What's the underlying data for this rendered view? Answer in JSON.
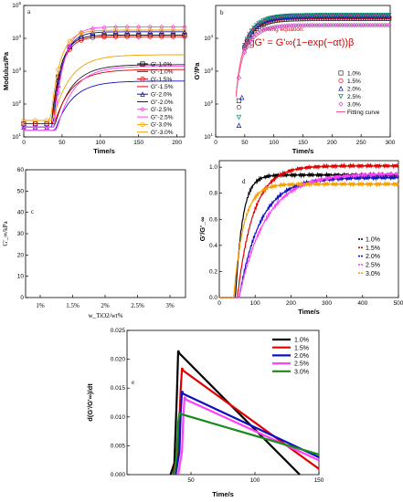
{
  "chart_data": [
    {
      "panel": "a",
      "type": "line",
      "xlabel": "Time/s",
      "ylabel": "Modulus/Pa",
      "xlim": [
        0,
        210
      ],
      "ylim_log10": [
        1,
        5
      ],
      "log_y": true,
      "x_ticks": [
        "0",
        "50",
        "100",
        "150",
        "200"
      ],
      "y_ticks": [
        "10^1",
        "10^2",
        "10^3",
        "10^4",
        "10^5"
      ],
      "legend_position": "right-middle",
      "series": [
        {
          "name": "G'-1.0%",
          "color": "#000000",
          "marker": "square",
          "y0": 1.4,
          "t0": 36,
          "plateau": 4.1
        },
        {
          "name": "G''-1.0%",
          "color": "#222222",
          "marker": "line",
          "y0": 1.3,
          "t0": 40,
          "plateau": 3.2
        },
        {
          "name": "G'-1.5%",
          "color": "#e00000",
          "marker": "circle",
          "y0": 1.4,
          "t0": 37,
          "plateau": 4.05
        },
        {
          "name": "G''-1.5%",
          "color": "#e00000",
          "marker": "line",
          "y0": 1.4,
          "t0": 40,
          "plateau": 3.05
        },
        {
          "name": "G'-2.0%",
          "color": "#1010c0",
          "marker": "triangle",
          "y0": 1.3,
          "t0": 38,
          "plateau": 4.2
        },
        {
          "name": "G''-2.0%",
          "color": "#1010c0",
          "marker": "line",
          "y0": 1.2,
          "t0": 41,
          "plateau": 2.7
        },
        {
          "name": "G'-2.5%",
          "color": "#ff40ff",
          "marker": "diamond",
          "y0": 1.3,
          "t0": 40,
          "plateau": 4.35
        },
        {
          "name": "G''-2.5%",
          "color": "#ff40ff",
          "marker": "line",
          "y0": 1.2,
          "t0": 43,
          "plateau": 3.15
        },
        {
          "name": "G'-3.0%",
          "color": "#f5a000",
          "marker": "circle",
          "y0": 1.5,
          "t0": 35,
          "plateau": 4.25
        },
        {
          "name": "G''-3.0%",
          "color": "#f5a000",
          "marker": "line",
          "y0": 1.5,
          "t0": 38,
          "plateau": 3.5
        }
      ]
    },
    {
      "panel": "b",
      "type": "scatter",
      "xlabel": "Time/s",
      "ylabel": "G'/Pa",
      "xlim": [
        0,
        300
      ],
      "ylim_log10": [
        1,
        5
      ],
      "log_y": true,
      "x_ticks": [
        "0",
        "50",
        "100",
        "150",
        "200",
        "250",
        "300"
      ],
      "y_ticks": [
        "10^1",
        "10^2",
        "10^3",
        "10^4"
      ],
      "legend_position": "right-middle",
      "fit_label": "Fitting equation:",
      "fit_equation": "lgG' = G'∞(1−exp(−αt))β",
      "fit_legend": "Fitting curve",
      "series": [
        {
          "name": "1.0%",
          "color": "#333333",
          "marker": "square",
          "early": [
            [
              40,
              2.1
            ]
          ],
          "plateau": 4.6
        },
        {
          "name": "1.5%",
          "color": "#e00000",
          "marker": "circle",
          "early": [
            [
              40,
              1.9
            ]
          ],
          "plateau": 4.65
        },
        {
          "name": "2.0%",
          "color": "#1010c0",
          "marker": "triangle",
          "early": [
            [
              40,
              1.35
            ],
            [
              45,
              2.2
            ]
          ],
          "plateau": 4.68
        },
        {
          "name": "2.5%",
          "color": "#008a6a",
          "marker": "triangle-down",
          "early": [
            [
              40,
              1.6
            ]
          ],
          "plateau": 4.7
        },
        {
          "name": "3.0%",
          "color": "#c050c0",
          "marker": "diamond",
          "early": [
            [
              40,
              2.8
            ]
          ],
          "plateau": 4.4
        }
      ]
    },
    {
      "panel": "c",
      "type": "line",
      "xlabel": "w_TiO2/wt%",
      "ylabel": "G'_∞/kPa",
      "ylim": [
        0,
        60
      ],
      "x_ticks": [
        "1%",
        "1.5%",
        "2%",
        "2.5%",
        "3%"
      ],
      "y_ticks": [
        "0",
        "10",
        "20",
        "30",
        "40",
        "50",
        "60"
      ],
      "series": []
    },
    {
      "panel": "d",
      "type": "line",
      "xlabel": "Time/s",
      "ylabel": "G'/G'_∞",
      "xlim": [
        0,
        500
      ],
      "ylim": [
        0,
        1.05
      ],
      "x_ticks": [
        "0",
        "100",
        "200",
        "300",
        "400",
        "500"
      ],
      "y_ticks": [
        "0.0",
        "0.2",
        "0.4",
        "0.6",
        "0.8",
        "1.0"
      ],
      "legend_position": "bottom-right",
      "series": [
        {
          "name": "1.0%",
          "color": "#000000",
          "t0": 45,
          "tau": 20,
          "final": 0.94
        },
        {
          "name": "1.5%",
          "color": "#e00000",
          "t0": 50,
          "tau": 45,
          "final": 1.01
        },
        {
          "name": "2.0%",
          "color": "#1010c0",
          "t0": 55,
          "tau": 60,
          "final": 0.92
        },
        {
          "name": "2.5%",
          "color": "#ff40ff",
          "t0": 55,
          "tau": 75,
          "final": 0.95
        },
        {
          "name": "3.0%",
          "color": "#f5a000",
          "t0": 40,
          "tau": 28,
          "final": 0.87
        }
      ]
    },
    {
      "panel": "e",
      "type": "line",
      "xlabel": "Time/s",
      "ylabel": "d(G'/G'∞)/dt",
      "xlim": [
        0,
        150
      ],
      "ylim": [
        0,
        0.025
      ],
      "x_ticks": [
        "50",
        "100",
        "150"
      ],
      "y_ticks": [
        "0.000",
        "0.005",
        "0.010",
        "0.015",
        "0.020",
        "0.025"
      ],
      "legend_position": "top-right",
      "series": [
        {
          "name": "1.0%",
          "color": "#000000",
          "x": [
            34,
            37,
            39,
            40,
            41,
            135
          ],
          "y": [
            0,
            0.002,
            0.014,
            0.0215,
            0.021,
            0
          ]
        },
        {
          "name": "1.5%",
          "color": "#e00000",
          "x": [
            36,
            40,
            42,
            43,
            44,
            150
          ],
          "y": [
            0,
            0.004,
            0.015,
            0.0185,
            0.018,
            0.001
          ]
        },
        {
          "name": "2.0%",
          "color": "#1010c0",
          "x": [
            38,
            41,
            42,
            43,
            44,
            150
          ],
          "y": [
            0,
            0.004,
            0.011,
            0.0145,
            0.014,
            0.003
          ]
        },
        {
          "name": "2.5%",
          "color": "#ff40ff",
          "x": [
            40,
            43,
            44,
            45,
            46,
            150
          ],
          "y": [
            0,
            0.004,
            0.01,
            0.0135,
            0.013,
            0.0025
          ]
        },
        {
          "name": "3.0%",
          "color": "#1a8a1a",
          "x": [
            37,
            39,
            40,
            41,
            42,
            150
          ],
          "y": [
            0,
            0.004,
            0.009,
            0.0107,
            0.0105,
            0.0035
          ]
        }
      ]
    }
  ]
}
